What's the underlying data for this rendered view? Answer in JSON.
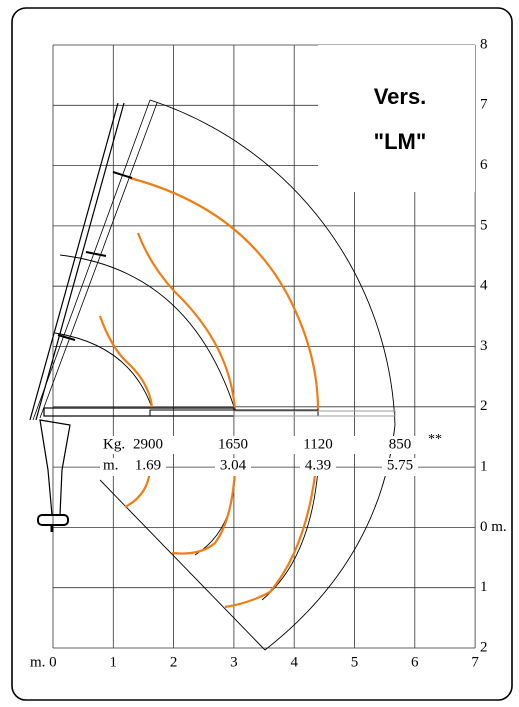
{
  "box": {
    "line1": "Vers.",
    "line2": "\"LM\""
  },
  "kg_unit": "Kg.",
  "m_unit": "m.",
  "note": "**",
  "loads": [
    {
      "kg": "2900",
      "m": "1.69"
    },
    {
      "kg": "1650",
      "m": "3.04"
    },
    {
      "kg": "1120",
      "m": "4.39"
    },
    {
      "kg": "850",
      "m": "5.75"
    }
  ],
  "right_axis": [
    "8",
    "7",
    "6",
    "5",
    "4",
    "3",
    "2",
    "1",
    "0 m.",
    "1",
    "2"
  ],
  "bottom_axis": [
    "m. 0",
    "1",
    "2",
    "3",
    "4",
    "5",
    "6",
    "7"
  ]
}
